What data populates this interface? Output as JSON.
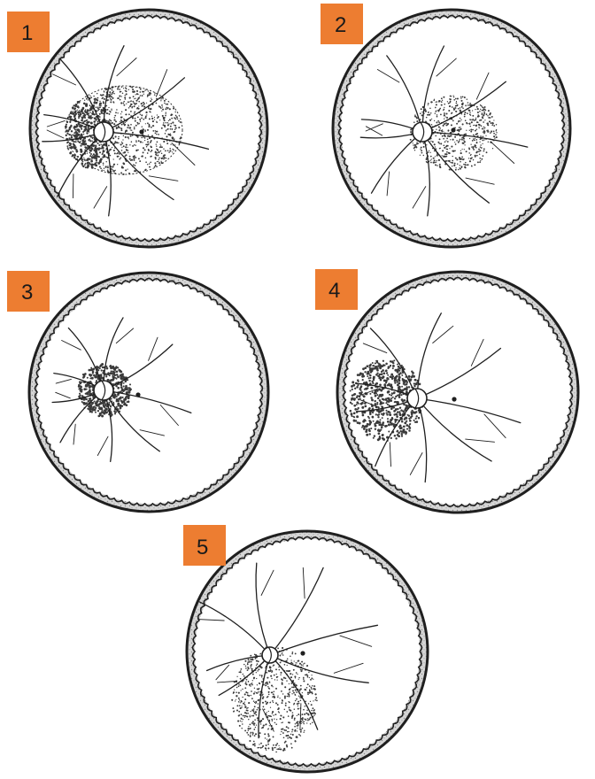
{
  "figure": {
    "label_color": "#ED7D31",
    "line_color": "#1f1f1f",
    "stipple_color": "#3a3a3a",
    "panels": [
      {
        "label": "1",
        "feature": "stippled-oval-around-disc-and-macula"
      },
      {
        "label": "2",
        "feature": "stippled-area-temporal-to-disc"
      },
      {
        "label": "3",
        "feature": "stippled-disc-only"
      },
      {
        "label": "4",
        "feature": "stippled-area-nasal-to-disc"
      },
      {
        "label": "5",
        "feature": "stippled-area-inferior-to-disc"
      }
    ]
  }
}
